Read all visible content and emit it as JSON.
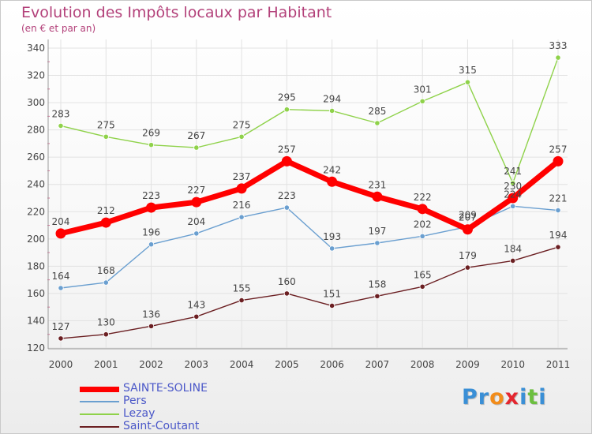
{
  "chart_data": {
    "type": "line",
    "title": "Evolution des Impôts locaux par Habitant",
    "subtitle": "(en € et par an)",
    "x": [
      "2000",
      "2001",
      "2002",
      "2003",
      "2004",
      "2005",
      "2006",
      "2007",
      "2008",
      "2009",
      "2010",
      "2011"
    ],
    "y_ticks": [
      120,
      140,
      160,
      180,
      200,
      220,
      240,
      260,
      280,
      300,
      320,
      340
    ],
    "ylim": [
      120,
      340
    ],
    "xlabel": "",
    "ylabel": "",
    "series": [
      {
        "name": "SAINTE-SOLINE",
        "color": "#ff0000",
        "values": [
          204,
          212,
          223,
          227,
          237,
          257,
          242,
          231,
          222,
          207,
          230,
          257
        ]
      },
      {
        "name": "Pers",
        "color": "#6a9fd0",
        "values": [
          164,
          168,
          196,
          204,
          216,
          223,
          193,
          197,
          202,
          209,
          224,
          221
        ]
      },
      {
        "name": "Lezay",
        "color": "#8fd24a",
        "values": [
          283,
          275,
          269,
          267,
          275,
          295,
          294,
          285,
          301,
          315,
          241,
          333
        ]
      },
      {
        "name": "Saint-Coutant",
        "color": "#6b1f22",
        "values": [
          127,
          130,
          136,
          143,
          155,
          160,
          151,
          158,
          165,
          179,
          184,
          194
        ]
      }
    ],
    "legend_position": "bottom-left"
  },
  "logo": {
    "text_parts": [
      {
        "t": "Pr",
        "color": "#3a8fd6"
      },
      {
        "t": "o",
        "color": "#f28c1a"
      },
      {
        "t": "x",
        "color": "#e4262f"
      },
      {
        "t": "i",
        "color": "#3a8fd6"
      },
      {
        "t": "t",
        "color": "#6cbf3f"
      },
      {
        "t": "i",
        "color": "#3a8fd6"
      }
    ]
  }
}
